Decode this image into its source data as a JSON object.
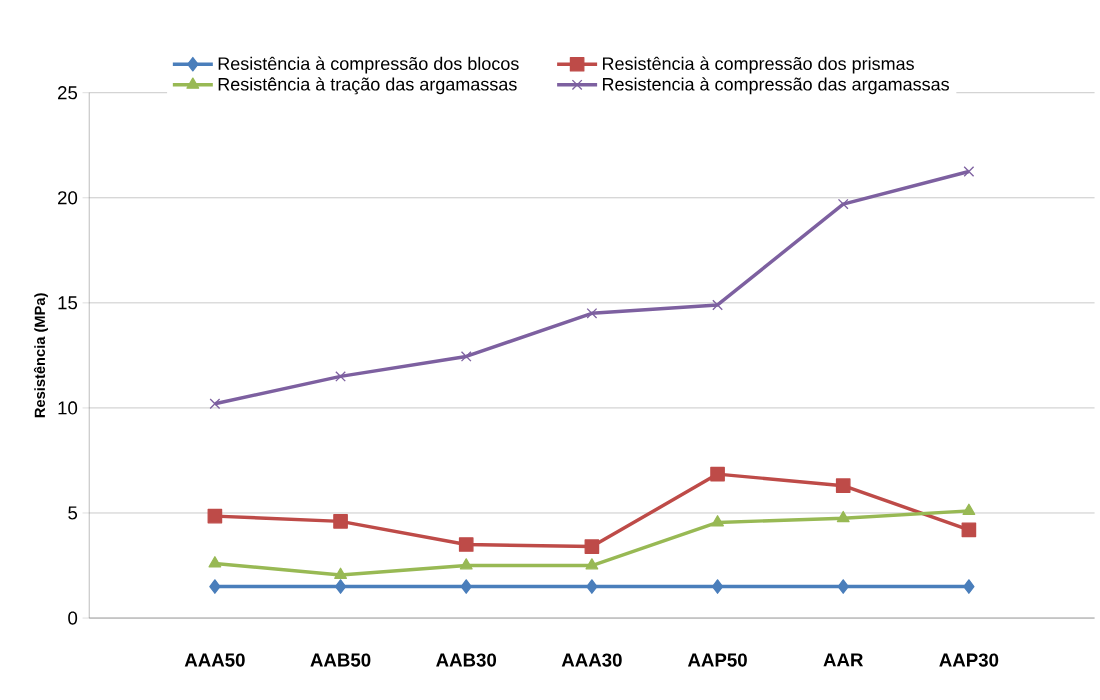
{
  "chart_data": {
    "type": "line",
    "ylabel": "Resistência  (MPa)",
    "categories": [
      "AAA50",
      "AAB50",
      "AAB30",
      "AAA30",
      "AAP50",
      "AAR",
      "AAP30"
    ],
    "series": [
      {
        "name": "Resistência à compressão dos blocos",
        "color": "#4a7ebb",
        "marker": "diamond",
        "values": [
          1.5,
          1.5,
          1.5,
          1.5,
          1.5,
          1.5,
          1.5
        ]
      },
      {
        "name": "Resistência à compressão dos prismas",
        "color": "#be4b48",
        "marker": "square",
        "values": [
          4.85,
          4.6,
          3.5,
          3.4,
          6.85,
          6.3,
          4.2
        ]
      },
      {
        "name": "Resistência à tração das argamassas",
        "color": "#98b954",
        "marker": "triangle",
        "values": [
          2.6,
          2.05,
          2.5,
          2.5,
          4.55,
          4.75,
          5.1
        ]
      },
      {
        "name": "Resistencia à compressão das argamassas",
        "color": "#7d60a0",
        "marker": "cross",
        "values": [
          10.2,
          11.5,
          12.45,
          14.5,
          14.9,
          19.7,
          21.25
        ]
      }
    ],
    "ylim": [
      0,
      25
    ],
    "yticks": [
      0,
      5,
      10,
      15,
      20,
      25
    ],
    "grid": "y",
    "legend": "top",
    "line_style": "solid"
  }
}
